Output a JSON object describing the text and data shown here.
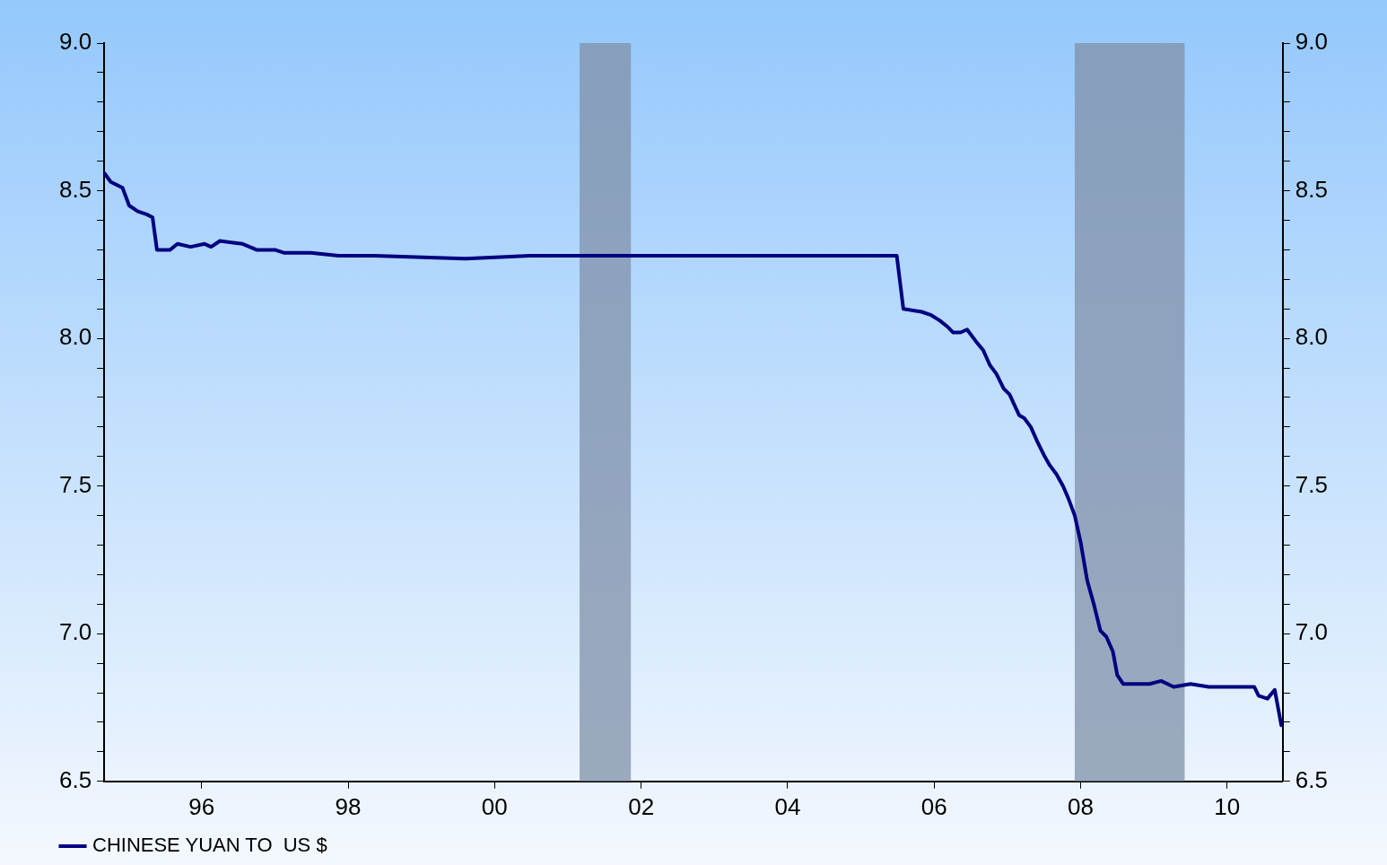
{
  "chart_data": {
    "type": "line",
    "x": [
      1994.67,
      1994.76,
      1994.84,
      1994.92,
      1995.01,
      1995.13,
      1995.25,
      1995.33,
      1995.39,
      1995.57,
      1995.67,
      1995.85,
      1996.04,
      1996.13,
      1996.25,
      1996.56,
      1996.75,
      1997.0,
      1997.12,
      1997.49,
      1997.87,
      1998.36,
      1999.61,
      2000.48,
      2001.72,
      2005.49,
      2005.58,
      2005.83,
      2005.95,
      2006.08,
      2006.18,
      2006.26,
      2006.36,
      2006.45,
      2006.57,
      2006.67,
      2006.76,
      2006.85,
      2006.95,
      2007.03,
      2007.16,
      2007.23,
      2007.32,
      2007.41,
      2007.51,
      2007.58,
      2007.67,
      2007.76,
      2007.83,
      2007.92,
      2008.0,
      2008.09,
      2008.18,
      2008.27,
      2008.35,
      2008.44,
      2008.5,
      2008.58,
      2008.75,
      2008.94,
      2009.1,
      2009.27,
      2009.5,
      2009.75,
      2010.08,
      2010.37,
      2010.43,
      2010.55,
      2010.65,
      2010.74
    ],
    "series": [
      {
        "name": "CHINESE YUAN TO  US $",
        "color": "#000080",
        "values": [
          8.56,
          8.53,
          8.52,
          8.51,
          8.45,
          8.43,
          8.42,
          8.41,
          8.3,
          8.3,
          8.32,
          8.31,
          8.32,
          8.31,
          8.33,
          8.32,
          8.3,
          8.3,
          8.29,
          8.29,
          8.28,
          8.28,
          8.27,
          8.28,
          8.28,
          8.28,
          8.1,
          8.09,
          8.08,
          8.06,
          8.04,
          8.02,
          8.02,
          8.03,
          7.99,
          7.96,
          7.91,
          7.88,
          7.83,
          7.81,
          7.74,
          7.73,
          7.7,
          7.65,
          7.6,
          7.57,
          7.54,
          7.5,
          7.46,
          7.4,
          7.31,
          7.18,
          7.1,
          7.01,
          6.99,
          6.94,
          6.86,
          6.83,
          6.83,
          6.83,
          6.84,
          6.82,
          6.83,
          6.82,
          6.82,
          6.82,
          6.79,
          6.78,
          6.81,
          6.69
        ]
      }
    ],
    "xlim": [
      1994.67,
      2010.76
    ],
    "xticks": [
      {
        "value": 1996,
        "label": "96"
      },
      {
        "value": 1998,
        "label": "98"
      },
      {
        "value": 2000,
        "label": "00"
      },
      {
        "value": 2002,
        "label": "02"
      },
      {
        "value": 2004,
        "label": "04"
      },
      {
        "value": 2006,
        "label": "06"
      },
      {
        "value": 2008,
        "label": "08"
      },
      {
        "value": 2010,
        "label": "10"
      }
    ],
    "ylim": [
      6.5,
      9
    ],
    "yticks": [
      6.5,
      {
        "value": 6.6,
        "label": null
      },
      {
        "value": 6.7,
        "label": null
      },
      {
        "value": 6.8,
        "label": null
      },
      {
        "value": 6.9,
        "label": null
      },
      {
        "value": 7,
        "label": "7.0"
      },
      {
        "value": 7.1,
        "label": null
      },
      {
        "value": 7.2,
        "label": null
      },
      {
        "value": 7.3,
        "label": null
      },
      {
        "value": 7.4,
        "label": null
      },
      7.5,
      {
        "value": 7.6,
        "label": null
      },
      {
        "value": 7.7,
        "label": null
      },
      {
        "value": 7.8,
        "label": null
      },
      {
        "value": 7.9,
        "label": null
      },
      {
        "value": 8,
        "label": "8.0"
      },
      {
        "value": 8.1,
        "label": null
      },
      {
        "value": 8.2,
        "label": null
      },
      {
        "value": 8.3,
        "label": null
      },
      {
        "value": 8.4,
        "label": null
      },
      8.5,
      {
        "value": 8.6,
        "label": null
      },
      {
        "value": 8.7,
        "label": null
      },
      {
        "value": 8.8,
        "label": null
      },
      {
        "value": 8.9,
        "label": null
      },
      {
        "value": 9,
        "label": "9.0"
      }
    ],
    "y2lim": [
      6.5,
      9
    ],
    "y2ticks": [
      6.5,
      {
        "value": 6.6,
        "label": null
      },
      {
        "value": 6.7,
        "label": null
      },
      {
        "value": 6.8,
        "label": null
      },
      {
        "value": 6.9,
        "label": null
      },
      {
        "value": 7,
        "label": "7.0"
      },
      {
        "value": 7.1,
        "label": null
      },
      {
        "value": 7.2,
        "label": null
      },
      {
        "value": 7.3,
        "label": null
      },
      {
        "value": 7.4,
        "label": null
      },
      7.5,
      {
        "value": 7.6,
        "label": null
      },
      {
        "value": 7.7,
        "label": null
      },
      {
        "value": 7.8,
        "label": null
      },
      {
        "value": 7.9,
        "label": null
      },
      {
        "value": 8,
        "label": "8.0"
      },
      {
        "value": 8.1,
        "label": null
      },
      {
        "value": 8.2,
        "label": null
      },
      {
        "value": 8.3,
        "label": null
      },
      {
        "value": 8.4,
        "label": null
      },
      8.5,
      {
        "value": 8.6,
        "label": null
      },
      {
        "value": 8.7,
        "label": null
      },
      {
        "value": 8.8,
        "label": null
      },
      {
        "value": 8.9,
        "label": null
      },
      {
        "value": 9,
        "label": "9.0"
      }
    ],
    "bands": [
      {
        "axis": "x",
        "from": 2001.16,
        "to": 2001.86,
        "color": "#8090a8"
      },
      {
        "axis": "x",
        "from": 2007.92,
        "to": 2009.42,
        "color": "#8090a8"
      }
    ],
    "grid": false,
    "legend": "bottom left",
    "marker": "none",
    "line_style": "solid"
  }
}
